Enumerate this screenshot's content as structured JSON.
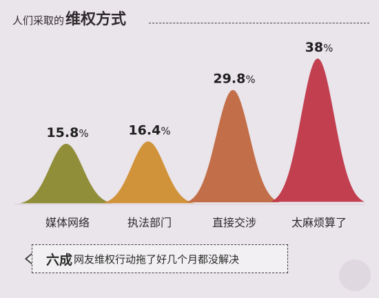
{
  "header": {
    "title_prefix": "人们采取的",
    "title_main": "维权方式"
  },
  "chart_data": {
    "type": "area",
    "categories": [
      "媒体网络",
      "执法部门",
      "直接交涉",
      "太麻烦算了"
    ],
    "values": [
      15.8,
      16.4,
      29.8,
      38
    ],
    "value_labels": [
      "15.8%",
      "16.4%",
      "29.8%",
      "38%"
    ],
    "unit": "%",
    "colors": [
      "#8c8a33",
      "#cf8f34",
      "#c06a43",
      "#c0394a"
    ]
  },
  "caption": {
    "highlight": "六成",
    "rest": "网友维权行动拖了好几个月都没解决"
  }
}
